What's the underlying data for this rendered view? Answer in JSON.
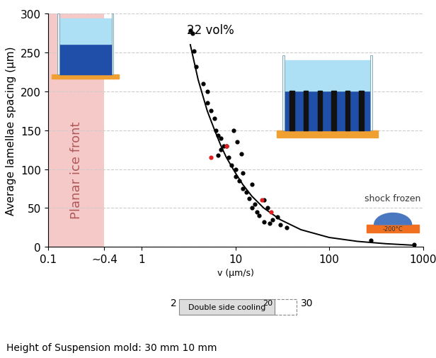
{
  "chart_data": {
    "type": "scatter",
    "x_label": "v (μm/s)",
    "y_label": "Average lamellae spacing (μm)",
    "log": "x",
    "grid": true,
    "xlim": [
      0.1,
      1000
    ],
    "xticks": [
      0.1,
      {
        "value": 0.4,
        "label": "~0.4"
      },
      1,
      10,
      100,
      1000
    ],
    "ylim": [
      0,
      300
    ],
    "yticks": [
      0,
      50,
      100,
      150,
      200,
      250,
      300
    ],
    "region": {
      "label": "Planar ice front",
      "x": [
        0.1,
        0.4
      ],
      "color": "#f6c9c9"
    },
    "series": [
      {
        "type": "scatter",
        "color": "#000000",
        "marker": "circle",
        "x": [
          3.3,
          3.5,
          3.6,
          3.8,
          4.5,
          5.0,
          5.0,
          5.5,
          6.0,
          6.2,
          6.5,
          7.0,
          7.5,
          7.0,
          6.5,
          8.0,
          8.5,
          9.0,
          9.5,
          10.0,
          10.5,
          10.0,
          11.0,
          11.5,
          12.0,
          12.0,
          13.0,
          14.0,
          15.0,
          16.0,
          15.0,
          17.0,
          18.0,
          20.0,
          22.0,
          25.0,
          20.0,
          23.0,
          28.0,
          30.0,
          35.0,
          280.0,
          800.0
        ],
        "values": [
          278,
          275,
          252,
          232,
          210,
          200,
          185,
          175,
          165,
          150,
          143,
          140,
          130,
          125,
          118,
          130,
          115,
          105,
          150,
          100,
          135,
          90,
          85,
          120,
          95,
          75,
          70,
          62,
          80,
          55,
          50,
          45,
          40,
          60,
          50,
          35,
          32,
          30,
          38,
          28,
          25,
          8,
          3
        ]
      },
      {
        "type": "scatter",
        "color": "#e02020",
        "marker": "circle",
        "x": [
          5.5,
          8.0,
          19.0,
          24.0
        ],
        "values": [
          115,
          130,
          60,
          45
        ]
      },
      {
        "type": "line",
        "color": "#000000",
        "line_style": "solid",
        "x": [
          3.3,
          4,
          5,
          6,
          7,
          8,
          10,
          12,
          15,
          20,
          30,
          50,
          100,
          200,
          400,
          800
        ],
        "values": [
          260,
          215,
          175,
          150,
          130,
          115,
          95,
          80,
          65,
          50,
          35,
          22,
          12,
          7,
          4,
          2
        ]
      }
    ],
    "annotations": [
      "22 vol%",
      "shock frozen",
      "-200°C",
      "2",
      "Double side cooling",
      "20",
      "30",
      "Height of Suspension mold: 30 mm 10 mm"
    ]
  }
}
